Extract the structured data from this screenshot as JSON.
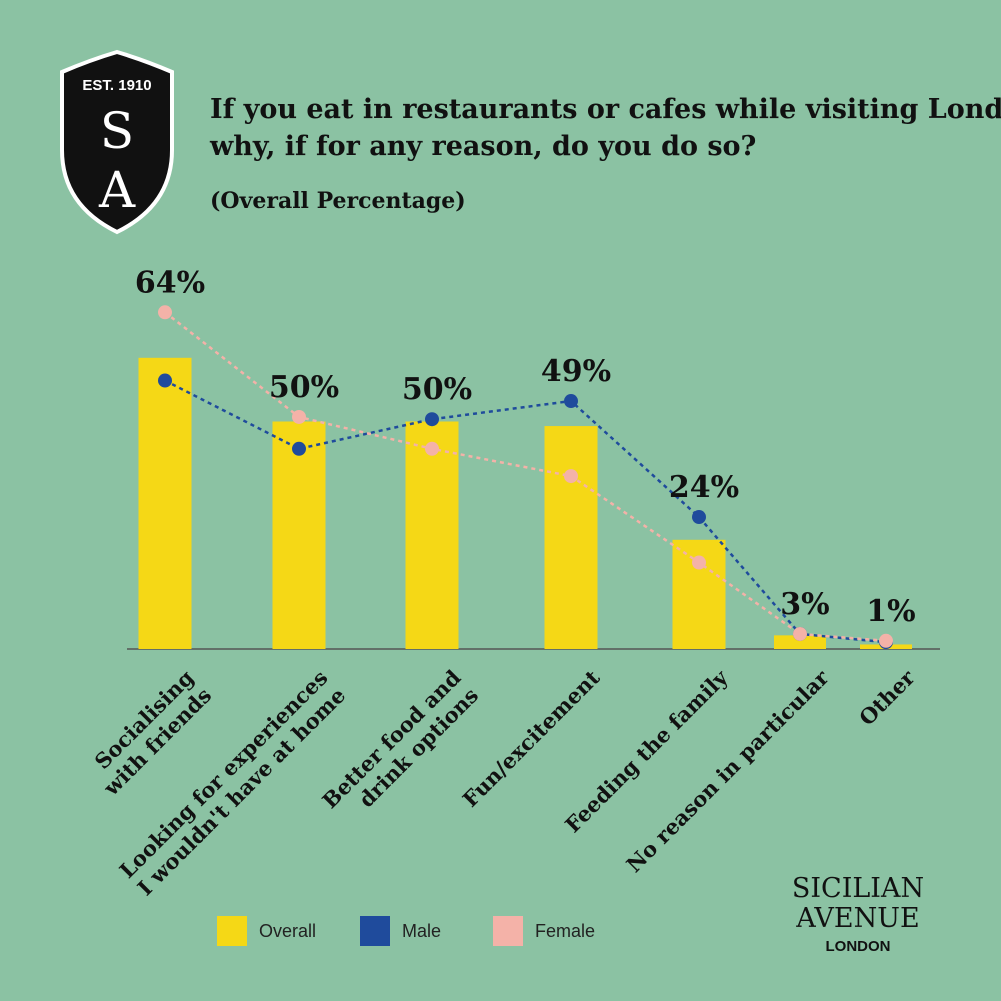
{
  "chart_data": {
    "type": "bar",
    "title": "If you eat in restaurants or cafes while visiting London, why, if for any reason, do you do so?",
    "subtitle": "(Overall Percentage)",
    "categories": [
      "Socialising\nwith friends",
      "Looking for experiences\nI wouldn't have at home",
      "Better food and\ndrink options",
      "Fun/excitement",
      "Feeding the family",
      "No reason in particular",
      "Other"
    ],
    "series": [
      {
        "name": "Overall",
        "color": "#f5d816",
        "values": [
          64,
          50,
          50,
          49,
          24,
          3,
          1
        ],
        "value_labels": [
          "64%",
          "50%",
          "50%",
          "49%",
          "24%",
          "3%",
          "1%"
        ]
      },
      {
        "name": "Male",
        "color": "#1f4b9c",
        "values": [
          59,
          44,
          50.5,
          54.5,
          29,
          3.3,
          1.5
        ]
      },
      {
        "name": "Female",
        "color": "#f4b2a8",
        "values": [
          74,
          51,
          44,
          38,
          19,
          3.3,
          1.8
        ]
      }
    ]
  },
  "logo": {
    "established": "EST. 1910",
    "letter_top": "S",
    "letter_bottom": "A"
  },
  "brand": {
    "line1": "SICILIAN",
    "line2": "AVENUE",
    "line3": "LONDON"
  }
}
